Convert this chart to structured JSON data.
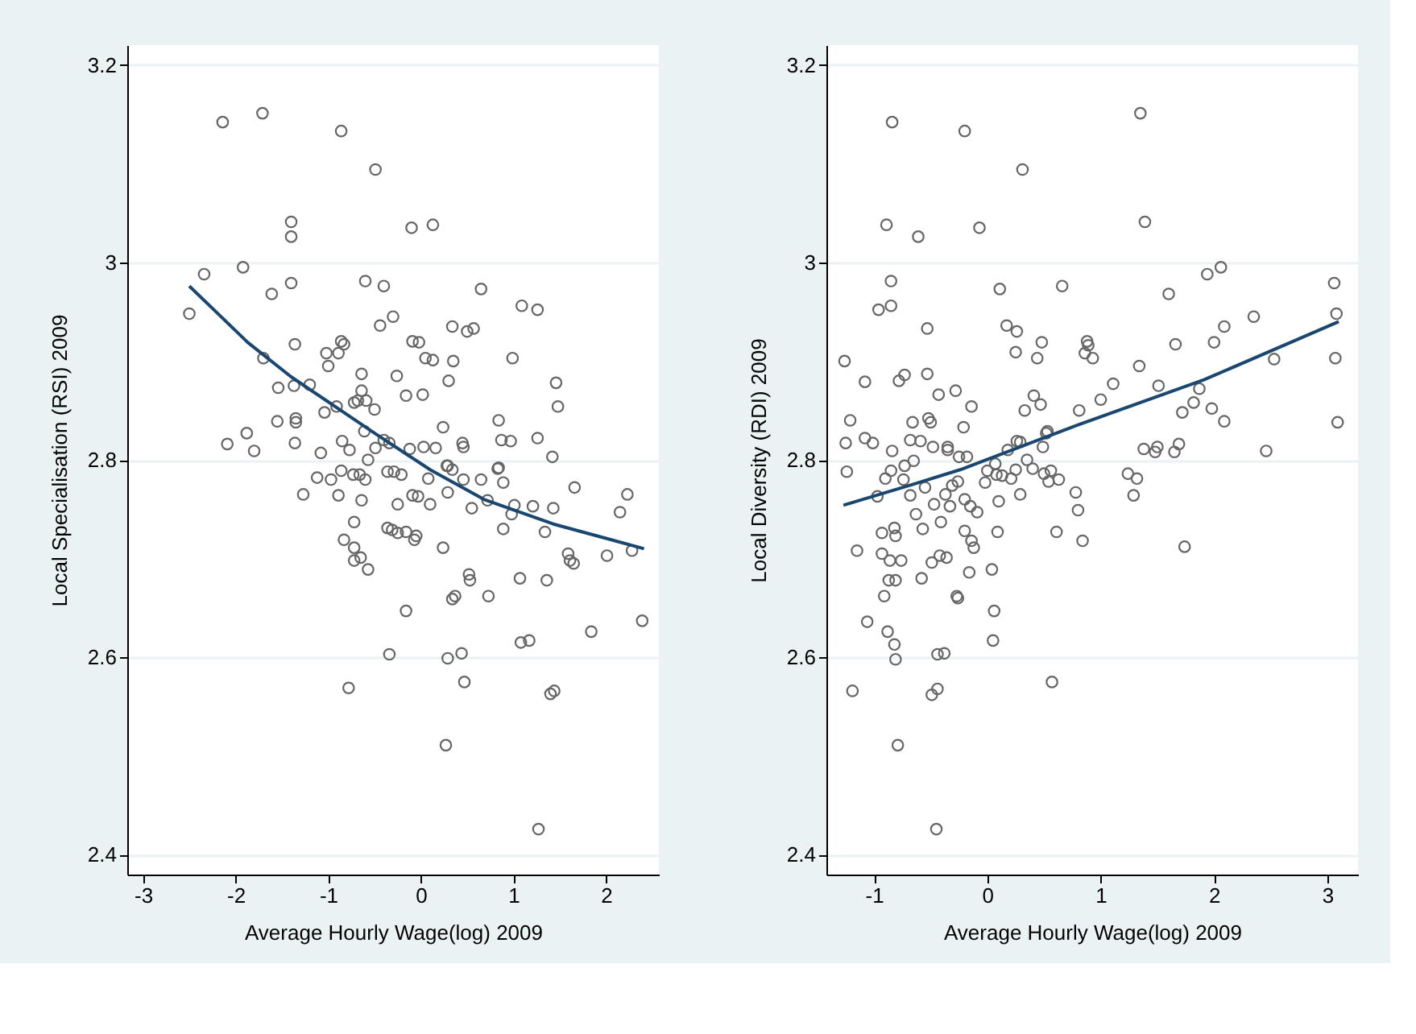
{
  "chart_data": [
    {
      "type": "scatter",
      "xlabel": "Average Hourly Wage(log) 2009",
      "ylabel": "Local Specialisation (RSI) 2009",
      "xlim": [
        -3.17,
        2.57
      ],
      "ylim": [
        2.38,
        3.22
      ],
      "xticks": [
        -3,
        -2,
        -1,
        0,
        1,
        2
      ],
      "yticks": [
        2.4,
        2.6,
        2.8,
        3,
        3.2
      ],
      "grid": "y",
      "series": [
        {
          "marker": "circle",
          "color": "#666666",
          "x": [
            -2.14,
            -1.71,
            -0.86,
            -0.49,
            -1.4,
            -1.4,
            -0.1,
            0.13,
            -2.34,
            -1.92,
            -2.5,
            -1.61,
            -1.4,
            -0.6,
            -0.4,
            0.65,
            1.09,
            1.26,
            -0.3,
            -0.44,
            0.34,
            0.5,
            0.57,
            -1.36,
            -0.86,
            -0.83,
            -1.02,
            -0.89,
            -1.0,
            -1.7,
            -0.09,
            -0.02,
            0.05,
            0.13,
            0.35,
            0.99,
            0.3,
            -0.26,
            -0.64,
            -0.64,
            -1.54,
            -1.37,
            -1.2,
            -0.16,
            0.02,
            1.46,
            1.48,
            -0.72,
            -0.68,
            -0.59,
            -0.5,
            -1.04,
            -0.91,
            -1.55,
            -1.35,
            -1.35,
            -0.61,
            0.24,
            0.84,
            -1.88,
            -2.09,
            -1.8,
            -1.36,
            -0.85,
            -0.77,
            -1.08,
            -0.4,
            -0.34,
            -0.49,
            -0.12,
            0.03,
            0.16,
            0.45,
            0.46,
            0.87,
            0.97,
            1.26,
            1.42,
            0.84,
            0.29,
            -1.12,
            -0.97,
            -0.86,
            -0.73,
            -0.66,
            -0.6,
            -1.27,
            -0.89,
            -0.64,
            -0.36,
            -0.29,
            -0.21,
            -0.57,
            0.08,
            0.28,
            0.34,
            0.46,
            0.65,
            0.89,
            0.83,
            -0.09,
            -0.03,
            -0.25,
            0.1,
            0.29,
            0.55,
            0.72,
            1.01,
            0.98,
            1.21,
            1.43,
            1.66,
            2.23,
            2.15,
            -0.72,
            -0.83,
            -0.72,
            -0.65,
            -0.72,
            -0.57,
            -0.36,
            -0.31,
            -0.25,
            -0.16,
            -0.05,
            -0.07,
            0.24,
            0.89,
            1.34,
            1.59,
            1.61,
            1.65,
            2.01,
            2.28,
            0.52,
            0.53,
            0.34,
            0.37,
            0.73,
            1.07,
            1.36,
            -0.16,
            1.84,
            2.39,
            1.08,
            1.17,
            -0.34,
            0.29,
            0.44,
            -0.78,
            0.47,
            1.4,
            1.44,
            0.27,
            1.27
          ],
          "values": [
            3.142,
            3.151,
            3.133,
            3.094,
            3.041,
            3.026,
            3.035,
            3.038,
            2.988,
            2.995,
            2.948,
            2.968,
            2.979,
            2.981,
            2.976,
            2.973,
            2.956,
            2.952,
            2.945,
            2.936,
            2.935,
            2.93,
            2.933,
            2.917,
            2.92,
            2.917,
            2.908,
            2.908,
            2.895,
            2.903,
            2.92,
            2.919,
            2.903,
            2.901,
            2.9,
            2.903,
            2.88,
            2.885,
            2.887,
            2.87,
            2.873,
            2.875,
            2.876,
            2.865,
            2.866,
            2.878,
            2.854,
            2.858,
            2.86,
            2.86,
            2.851,
            2.848,
            2.854,
            2.839,
            2.842,
            2.838,
            2.829,
            2.833,
            2.84,
            2.827,
            2.816,
            2.809,
            2.817,
            2.819,
            2.81,
            2.807,
            2.82,
            2.817,
            2.812,
            2.811,
            2.813,
            2.812,
            2.817,
            2.813,
            2.82,
            2.819,
            2.822,
            2.803,
            2.792,
            2.794,
            2.782,
            2.78,
            2.789,
            2.785,
            2.785,
            2.78,
            2.765,
            2.764,
            2.759,
            2.788,
            2.788,
            2.785,
            2.8,
            2.781,
            2.794,
            2.79,
            2.78,
            2.78,
            2.777,
            2.791,
            2.764,
            2.763,
            2.755,
            2.755,
            2.767,
            2.751,
            2.759,
            2.754,
            2.745,
            2.753,
            2.751,
            2.772,
            2.765,
            2.747,
            2.737,
            2.719,
            2.711,
            2.701,
            2.698,
            2.689,
            2.731,
            2.729,
            2.726,
            2.727,
            2.723,
            2.719,
            2.711,
            2.73,
            2.727,
            2.705,
            2.698,
            2.695,
            2.703,
            2.708,
            2.684,
            2.678,
            2.659,
            2.662,
            2.662,
            2.68,
            2.678,
            2.647,
            2.626,
            2.637,
            2.615,
            2.617,
            2.603,
            2.599,
            2.604,
            2.569,
            2.575,
            2.563,
            2.566,
            2.511,
            2.426
          ]
        },
        {
          "type": "line",
          "marker": "none",
          "line_style": "solid",
          "color": "#1a476f",
          "x": [
            -2.5,
            -1.87,
            -1.4,
            -0.5,
            0.1,
            0.68,
            1.43,
            2.41
          ],
          "values": [
            2.976,
            2.919,
            2.884,
            2.827,
            2.79,
            2.76,
            2.735,
            2.71
          ]
        }
      ]
    },
    {
      "type": "scatter",
      "xlabel": "Average Hourly Wage(log) 2009",
      "ylabel": "Local Diversity (RDI) 2009",
      "xlim": [
        -1.42,
        3.27
      ],
      "ylim": [
        2.38,
        3.22
      ],
      "xticks": [
        -1,
        0,
        1,
        2,
        3
      ],
      "yticks": [
        2.4,
        2.6,
        2.8,
        3,
        3.2
      ],
      "grid": "y",
      "series": [
        {
          "marker": "circle",
          "color": "#666666",
          "x": [
            -0.84,
            -0.2,
            0.31,
            1.35,
            1.39,
            -0.89,
            -0.61,
            -0.07,
            -0.85,
            -0.85,
            -0.96,
            0.11,
            0.66,
            1.6,
            1.94,
            2.06,
            2.35,
            3.06,
            3.08,
            3.07,
            3.09,
            -0.53,
            0.17,
            0.26,
            0.25,
            0.48,
            0.44,
            0.88,
            0.89,
            0.86,
            0.93,
            1.66,
            2.0,
            2.09,
            2.53,
            -1.26,
            -1.08,
            -0.78,
            -0.73,
            -0.53,
            -0.43,
            -0.28,
            -0.14,
            -0.21,
            -0.52,
            -0.5,
            -0.66,
            -1.21,
            -1.25,
            -1.08,
            -1.01,
            -0.84,
            -0.68,
            -0.59,
            -0.48,
            -0.35,
            -0.35,
            -0.25,
            -0.18,
            0.41,
            0.47,
            0.33,
            0.53,
            0.52,
            0.49,
            0.18,
            0.26,
            0.29,
            0.81,
            1.0,
            1.11,
            1.34,
            1.51,
            1.38,
            1.5,
            1.48,
            1.65,
            1.69,
            1.72,
            1.82,
            1.87,
            1.98,
            2.09,
            2.46,
            -1.24,
            -0.97,
            -1.15,
            -1.06,
            -1.19,
            -0.93,
            -0.93,
            -0.86,
            -0.76,
            -0.82,
            -0.81,
            -0.9,
            -0.85,
            -0.74,
            -0.73,
            -0.65,
            -0.68,
            -0.63,
            -0.57,
            -0.55,
            -0.47,
            -0.41,
            -0.37,
            -0.31,
            -0.26,
            -0.33,
            -0.49,
            -0.42,
            -0.36,
            -0.2,
            -0.14,
            -0.12,
            -0.16,
            -0.91,
            -0.87,
            -0.81,
            -0.58,
            -0.27,
            -0.26,
            -0.88,
            -0.82,
            -0.81,
            -0.79,
            -0.44,
            -0.38,
            -0.44,
            -0.49,
            -0.45,
            -0.2,
            -0.15,
            -0.09,
            -0.02,
            0.0,
            0.07,
            0.08,
            0.13,
            0.21,
            0.25,
            0.1,
            0.09,
            0.04,
            0.06,
            0.05,
            0.29,
            0.35,
            0.4,
            0.5,
            0.56,
            0.54,
            0.63,
            0.61,
            0.57,
            0.78,
            0.8,
            0.84,
            1.24,
            1.32,
            1.29,
            1.74
          ],
          "values": [
            3.142,
            3.133,
            3.094,
            3.151,
            3.041,
            3.038,
            3.026,
            3.035,
            2.981,
            2.956,
            2.952,
            2.973,
            2.976,
            2.968,
            2.988,
            2.995,
            2.945,
            2.979,
            2.948,
            2.903,
            2.838,
            2.933,
            2.936,
            2.93,
            2.909,
            2.919,
            2.903,
            2.92,
            2.916,
            2.908,
            2.903,
            2.917,
            2.919,
            2.935,
            2.902,
            2.9,
            2.879,
            2.88,
            2.886,
            2.887,
            2.866,
            2.87,
            2.854,
            2.833,
            2.842,
            2.838,
            2.838,
            2.84,
            2.817,
            2.822,
            2.817,
            2.809,
            2.82,
            2.819,
            2.813,
            2.813,
            2.81,
            2.803,
            2.803,
            2.865,
            2.856,
            2.85,
            2.829,
            2.827,
            2.813,
            2.81,
            2.819,
            2.818,
            2.85,
            2.861,
            2.877,
            2.895,
            2.875,
            2.811,
            2.813,
            2.808,
            2.808,
            2.816,
            2.848,
            2.858,
            2.872,
            2.852,
            2.839,
            2.809,
            2.788,
            2.763,
            2.708,
            2.636,
            2.566,
            2.726,
            2.705,
            2.698,
            2.698,
            2.731,
            2.723,
            2.781,
            2.789,
            2.78,
            2.794,
            2.799,
            2.764,
            2.745,
            2.73,
            2.772,
            2.755,
            2.737,
            2.765,
            2.774,
            2.778,
            2.753,
            2.696,
            2.703,
            2.701,
            2.728,
            2.718,
            2.711,
            2.686,
            2.662,
            2.678,
            2.678,
            2.68,
            2.662,
            2.66,
            2.626,
            2.613,
            2.598,
            2.511,
            2.603,
            2.604,
            2.568,
            2.562,
            2.426,
            2.76,
            2.753,
            2.747,
            2.777,
            2.789,
            2.796,
            2.785,
            2.784,
            2.781,
            2.79,
            2.758,
            2.727,
            2.689,
            2.647,
            2.617,
            2.765,
            2.8,
            2.791,
            2.786,
            2.789,
            2.778,
            2.78,
            2.727,
            2.575,
            2.767,
            2.749,
            2.718,
            2.786,
            2.781,
            2.764,
            2.712
          ]
        },
        {
          "type": "line",
          "marker": "none",
          "line_style": "solid",
          "color": "#1a476f",
          "x": [
            -1.27,
            -0.66,
            -0.24,
            0.79,
            1.91,
            3.1
          ],
          "values": [
            2.754,
            2.775,
            2.79,
            2.835,
            2.881,
            2.94
          ]
        }
      ]
    }
  ]
}
